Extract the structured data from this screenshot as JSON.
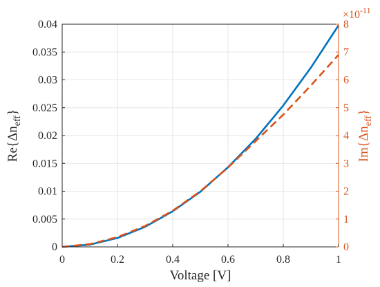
{
  "chart_data": {
    "type": "line",
    "title": "",
    "xlabel": "Voltage [V]",
    "xlim": [
      0,
      1
    ],
    "x_ticks": [
      "0",
      "0.2",
      "0.4",
      "0.6",
      "0.8",
      "1"
    ],
    "grid": true,
    "y_left": {
      "label_main": "Re{Δn",
      "label_sub": "eff",
      "label_close": "}",
      "ylim": [
        0,
        0.04
      ],
      "ticks": [
        "0",
        "0.005",
        "0.01",
        "0.015",
        "0.02",
        "0.025",
        "0.03",
        "0.035",
        "0.04"
      ],
      "color": "#0072BD"
    },
    "y_right": {
      "label_main": "Im{Δn",
      "label_sub": "eff",
      "label_close": "}",
      "ylim": [
        0,
        8
      ],
      "ticks": [
        "0",
        "1",
        "2",
        "3",
        "4",
        "5",
        "6",
        "7",
        "8"
      ],
      "exponent_base": "×10",
      "exponent_power": "-11",
      "color": "#D95319"
    },
    "series": [
      {
        "axis": "left",
        "style": "solid",
        "color": "#0072BD",
        "x": [
          0,
          0.1,
          0.2,
          0.3,
          0.4,
          0.5,
          0.6,
          0.7,
          0.8,
          0.9,
          1.0
        ],
        "y": [
          0,
          0.0004,
          0.0016,
          0.0036,
          0.0064,
          0.0099,
          0.0143,
          0.0194,
          0.0254,
          0.0322,
          0.0398
        ]
      },
      {
        "axis": "right",
        "style": "dashed",
        "color": "#D95319",
        "x": [
          0,
          0.1,
          0.2,
          0.3,
          0.4,
          0.5,
          0.6,
          0.7,
          0.8,
          0.9,
          1.0
        ],
        "y": [
          0,
          0.1,
          0.35,
          0.75,
          1.3,
          2.0,
          2.85,
          3.8,
          4.75,
          5.8,
          6.9
        ]
      }
    ]
  }
}
